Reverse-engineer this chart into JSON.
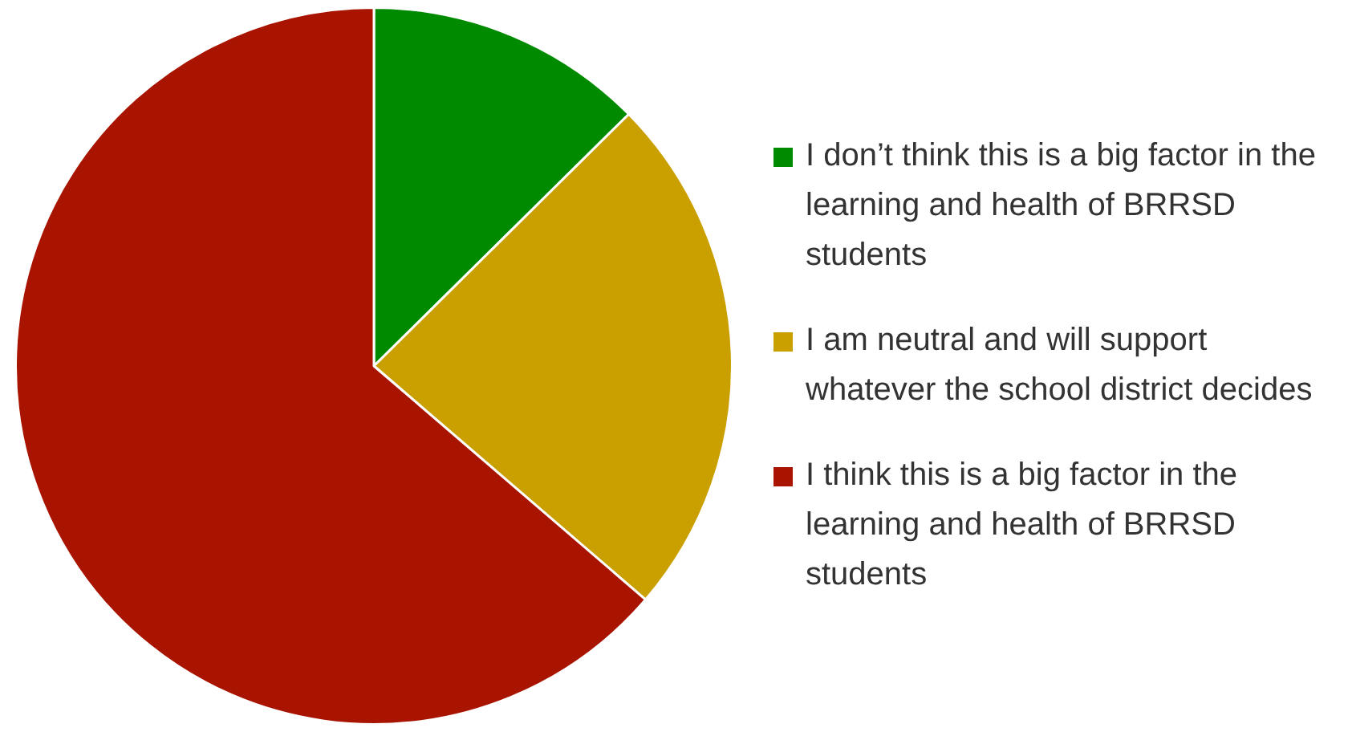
{
  "chart_data": {
    "type": "pie",
    "categories": [
      "I don’t think this is a big factor in the learning and health of BRRSD students",
      "I am neutral and will support whatever the school district decides",
      "I think this is a big factor in the learning and health of BRRSD students"
    ],
    "values": [
      12.6,
      23.7,
      63.7
    ],
    "colors": [
      "#008a00",
      "#c9a000",
      "#a81400"
    ],
    "legend": "right"
  }
}
